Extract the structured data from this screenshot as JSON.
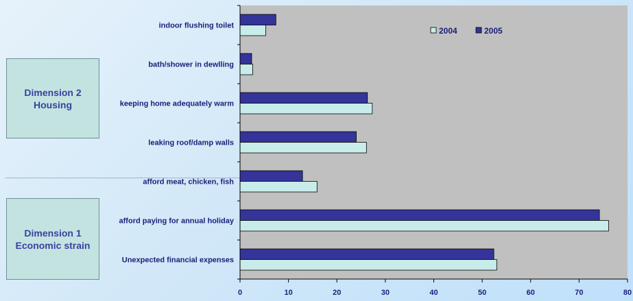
{
  "dimension_boxes": [
    {
      "line1": "Dimension 2",
      "line2": "Housing"
    },
    {
      "line1": "Dimension 1",
      "line2": "Economic strain"
    }
  ],
  "colors": {
    "plot_area": "#c0c0c0",
    "series_2004": "#c8ecea",
    "series_2005": "#34349a",
    "text": "#1a1f78",
    "box_fill": "#c3e3e1"
  },
  "chart_data": {
    "type": "bar",
    "orientation": "horizontal",
    "categories": [
      "indoor flushing toilet",
      "bath/shower in dewlling",
      "keeping home adequately warm",
      "leaking roof/damp walls",
      "afford meat, chicken, fish",
      "afford paying for annual holiday",
      "Unexpected financial expenses"
    ],
    "series": [
      {
        "name": "2005",
        "values": [
          7.4,
          2.4,
          26.3,
          24.0,
          12.9,
          74.2,
          52.4
        ]
      },
      {
        "name": "2004",
        "values": [
          5.3,
          2.6,
          27.3,
          26.1,
          15.9,
          76.1,
          53.0
        ]
      }
    ],
    "xlim": [
      0,
      80
    ],
    "xticks": [
      0,
      10,
      20,
      30,
      40,
      50,
      60,
      70,
      80
    ],
    "legend": {
      "position": "top-right",
      "order": [
        "2004",
        "2005"
      ]
    },
    "grid": false
  }
}
